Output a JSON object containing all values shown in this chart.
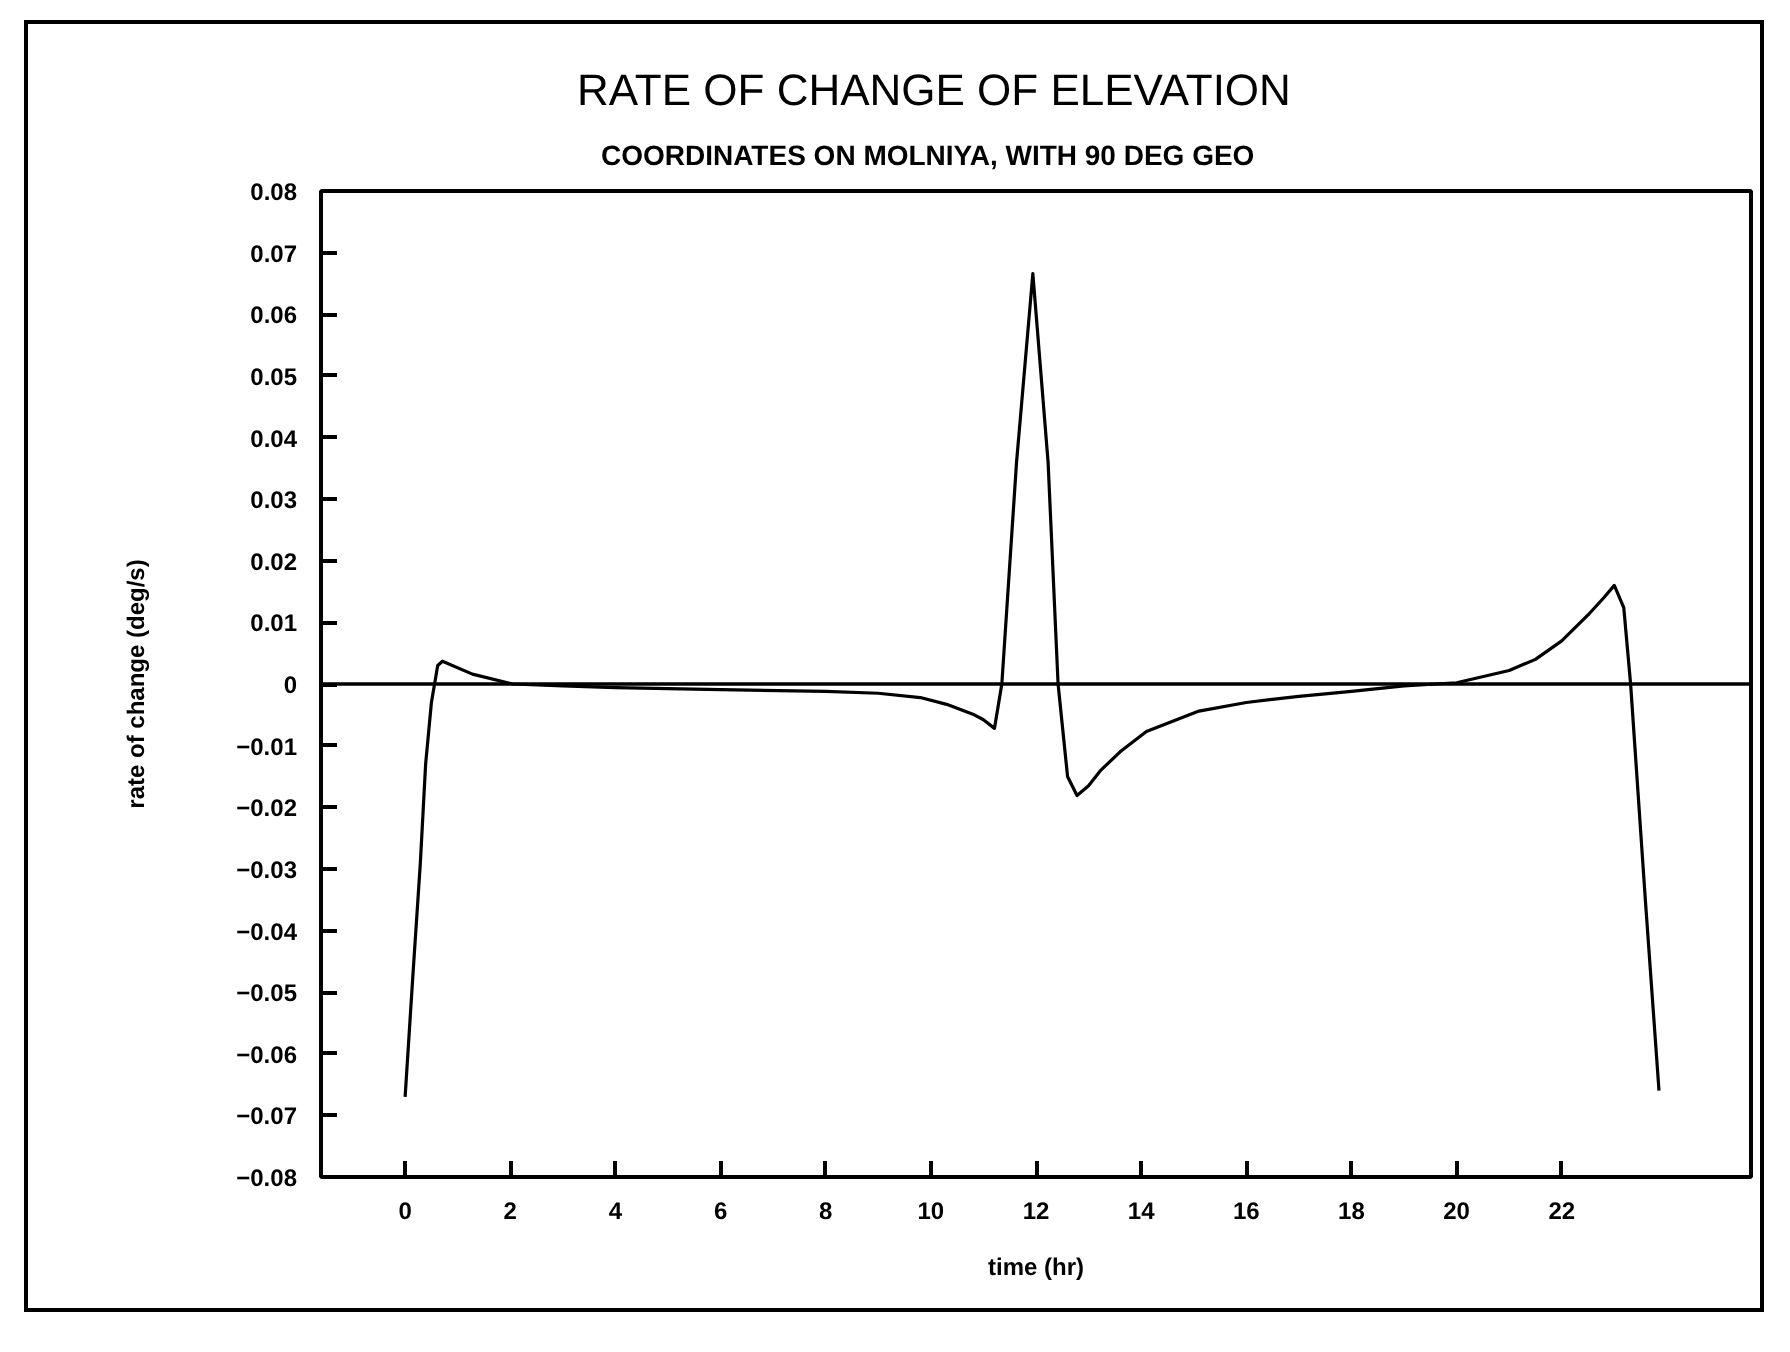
{
  "chart_data": {
    "type": "line",
    "title": "RATE OF CHANGE OF ELEVATION",
    "subtitle": "COORDINATES ON MOLNIYA, WITH 90 DEG GEO",
    "xlabel": "time (hr)",
    "ylabel": "rate of change (deg/s)",
    "x": [
      0,
      0.15,
      0.29,
      0.39,
      0.5,
      0.56,
      0.62,
      0.71,
      1.28,
      2.04,
      3,
      4,
      6,
      8,
      9,
      9.8,
      10.3,
      10.8,
      11.0,
      11.21,
      11.35,
      11.63,
      11.94,
      12.23,
      12.42,
      12.6,
      12.78,
      13.0,
      13.22,
      13.6,
      14.1,
      15.1,
      16,
      17,
      18,
      19,
      20,
      21,
      21.5,
      22,
      22.5,
      22.8,
      23.0,
      23.18,
      23.31,
      23.59,
      23.85
    ],
    "series": [
      {
        "color": "#000000",
        "values": [
          -0.067,
          -0.047,
          -0.029,
          -0.013,
          -0.003,
          0.0,
          0.003,
          0.0037,
          0.0016,
          0.0,
          -0.0003,
          -0.0006,
          -0.0009,
          -0.0012,
          -0.0015,
          -0.0022,
          -0.0033,
          -0.0049,
          -0.0058,
          -0.0072,
          0.0,
          0.036,
          0.0666,
          0.036,
          0.0,
          -0.015,
          -0.0181,
          -0.0165,
          -0.0141,
          -0.011,
          -0.0077,
          -0.0044,
          -0.003,
          -0.002,
          -0.0012,
          -0.0003,
          0.0002,
          0.0022,
          0.004,
          0.007,
          0.0112,
          0.014,
          0.016,
          0.0124,
          0.0,
          -0.035,
          -0.066
        ]
      }
    ],
    "xlim": [
      -1.6,
      25.6
    ],
    "ylim": [
      -0.08,
      0.08
    ],
    "xticks": [
      0,
      2,
      4,
      6,
      8,
      10,
      12,
      14,
      16,
      18,
      20,
      22
    ],
    "yticks": [
      {
        "value": -0.08,
        "label": "−0.08"
      },
      {
        "value": -0.07,
        "label": "−0.07"
      },
      {
        "value": -0.06,
        "label": "−0.06"
      },
      {
        "value": -0.05,
        "label": "−0.05"
      },
      {
        "value": -0.04,
        "label": "−0.04"
      },
      {
        "value": -0.03,
        "label": "−0.03"
      },
      {
        "value": -0.02,
        "label": "−0.02"
      },
      {
        "value": -0.01,
        "label": "−0.01"
      },
      0,
      0.01,
      0.02,
      0.03,
      0.04,
      0.05,
      0.06,
      0.07,
      0.08
    ],
    "ref_lines": [
      {
        "axis": "y",
        "value": 0,
        "color": "#000000"
      }
    ],
    "grid": false,
    "marker": "none",
    "line_style": "solid"
  }
}
